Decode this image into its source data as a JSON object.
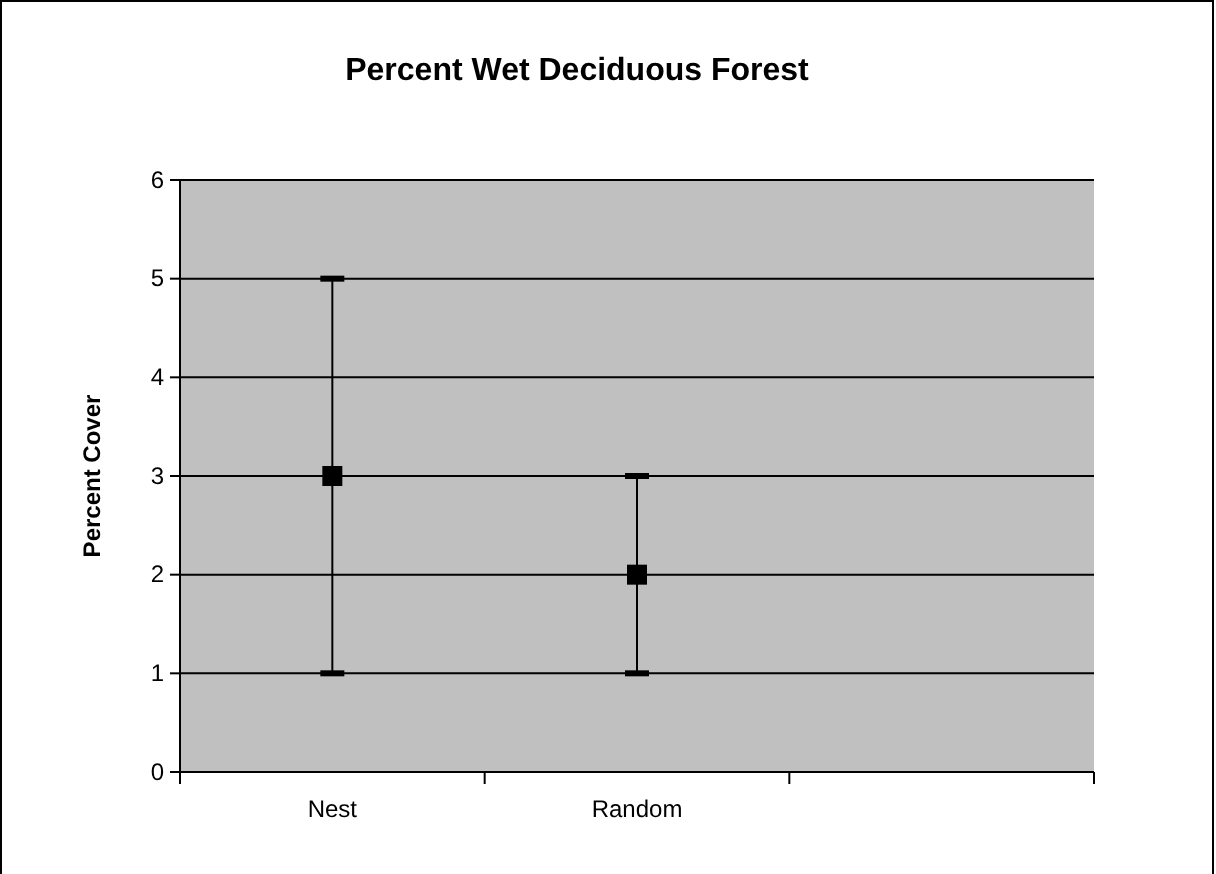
{
  "chart_data": {
    "type": "scatter",
    "title": "Percent Wet Deciduous Forest",
    "ylabel": "Percent Cover",
    "categories": [
      "Nest",
      "Random",
      null
    ],
    "values": [
      3,
      2,
      null
    ],
    "errors": [
      2,
      1,
      null
    ],
    "color": "#000000",
    "marker": "square",
    "ylim": [
      0,
      6
    ],
    "yticks": [
      0,
      1,
      2,
      3,
      4,
      5,
      6
    ],
    "grid": "y"
  }
}
